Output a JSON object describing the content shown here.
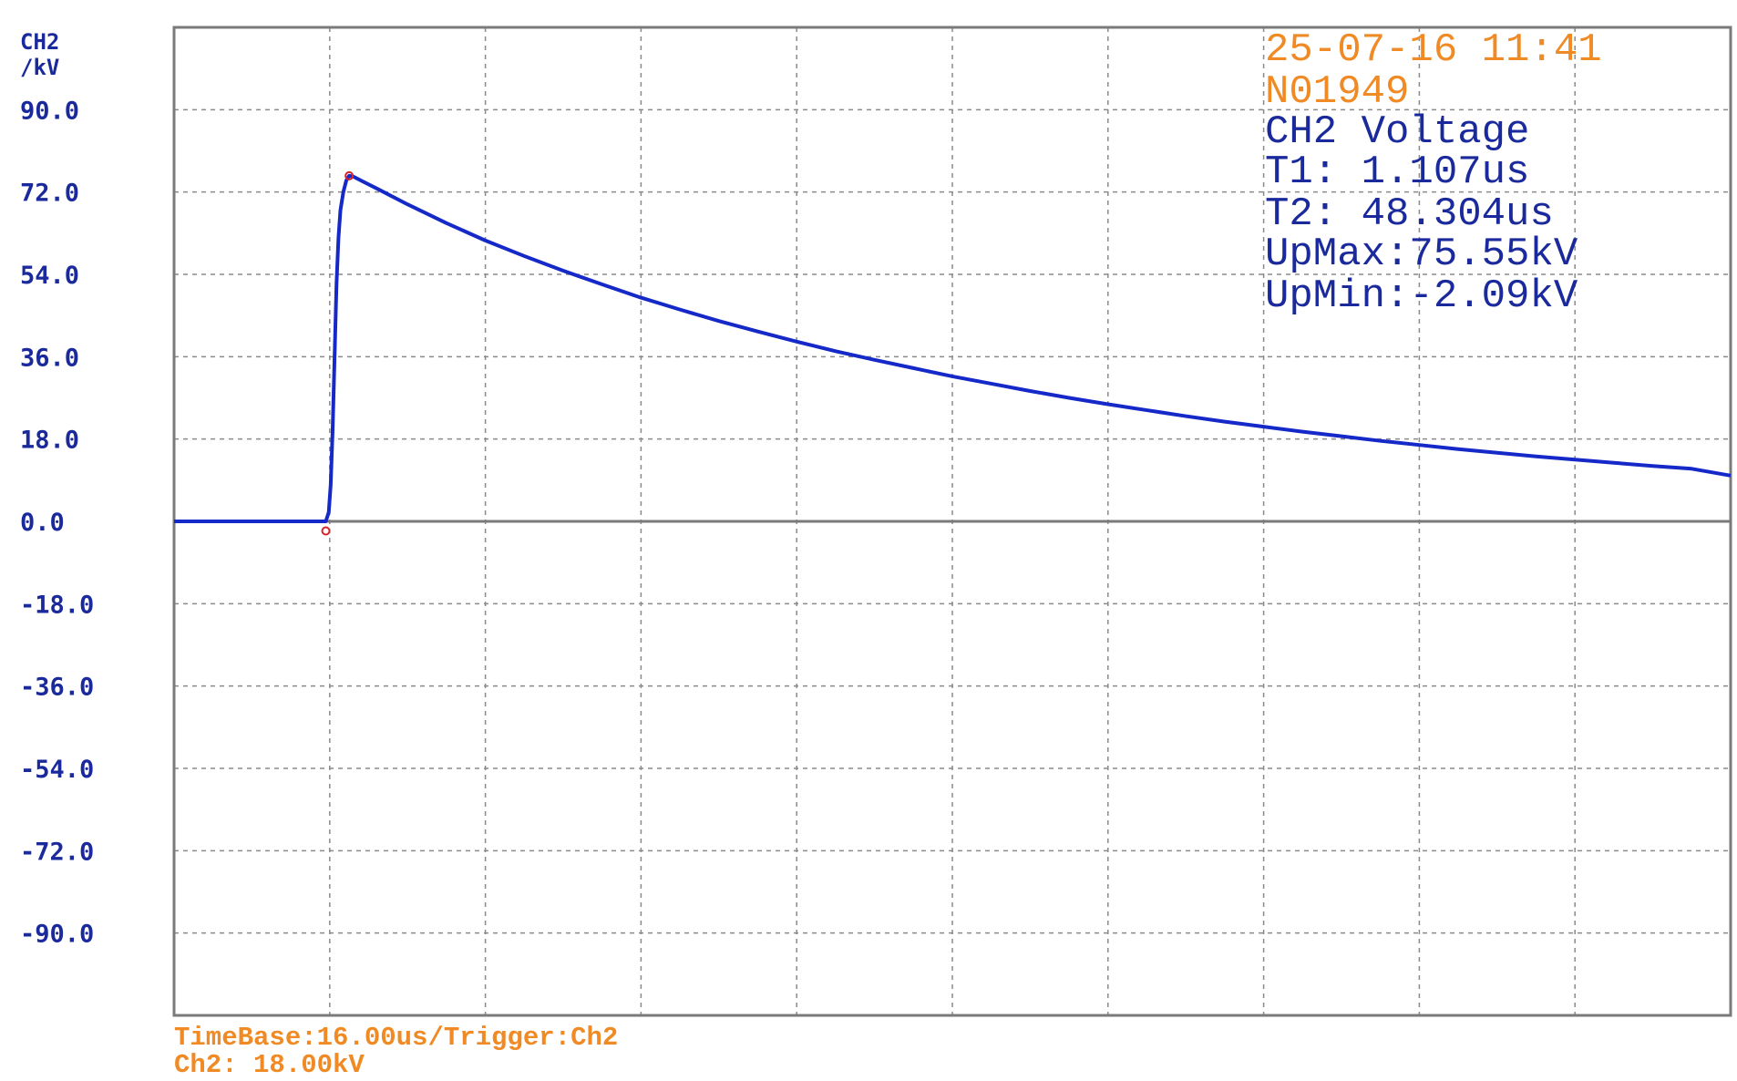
{
  "channel_label": "CH2",
  "unit_label": "/kV",
  "info": {
    "datetime": "25-07-16 11:41",
    "record": "N01949",
    "measurement": "CH2 Voltage",
    "t1": "T1:    1.107us",
    "t2": "T2:   48.304us",
    "upmax": "UpMax:75.55kV",
    "upmin": "UpMin:-2.09kV"
  },
  "footer": {
    "timebase": "TimeBase:16.00us/Trigger:Ch2",
    "channel_scale": "Ch2: 18.00kV"
  },
  "colors": {
    "trace": "#1528c8",
    "marker": "#d8232a",
    "grid": "#8a8a8a",
    "frame": "#7a7a7a",
    "axis_text": "#1a2a9c",
    "info_orange": "#f08a24"
  },
  "chart_data": {
    "type": "line",
    "x_unit": "us",
    "y_unit": "kV",
    "ylim": [
      -108,
      108
    ],
    "xlim": [
      0,
      160
    ],
    "y_ticks": [
      "90.0",
      "72.0",
      "54.0",
      "36.0",
      "18.0",
      "0.0",
      "-18.0",
      "-36.0",
      "-54.0",
      "-72.0",
      "-90.0"
    ],
    "grid": true,
    "series": [
      {
        "points": [
          [
            0,
            0
          ],
          [
            15.6,
            0
          ],
          [
            15.9,
            2
          ],
          [
            16.1,
            8
          ],
          [
            16.3,
            20
          ],
          [
            16.5,
            36
          ],
          [
            16.7,
            52
          ],
          [
            16.9,
            62
          ],
          [
            17.1,
            68
          ],
          [
            17.4,
            72
          ],
          [
            17.7,
            74.5
          ],
          [
            18.0,
            75.55
          ],
          [
            18.5,
            75.3
          ],
          [
            19.5,
            74.2
          ],
          [
            21,
            72.6
          ],
          [
            24,
            69.3
          ],
          [
            28,
            65.2
          ],
          [
            32,
            61.4
          ],
          [
            36,
            58.0
          ],
          [
            40,
            54.8
          ],
          [
            44,
            51.8
          ],
          [
            48,
            48.9
          ],
          [
            52,
            46.3
          ],
          [
            56,
            43.8
          ],
          [
            60,
            41.5
          ],
          [
            64,
            39.3
          ],
          [
            68,
            37.2
          ],
          [
            72,
            35.3
          ],
          [
            76,
            33.5
          ],
          [
            80,
            31.7
          ],
          [
            84,
            30.1
          ],
          [
            88,
            28.5
          ],
          [
            92,
            27.0
          ],
          [
            96,
            25.6
          ],
          [
            100,
            24.3
          ],
          [
            104,
            23.0
          ],
          [
            108,
            21.8
          ],
          [
            112,
            20.7
          ],
          [
            116,
            19.6
          ],
          [
            120,
            18.6
          ],
          [
            124,
            17.6
          ],
          [
            128,
            16.7
          ],
          [
            132,
            15.8
          ],
          [
            136,
            15.0
          ],
          [
            140,
            14.2
          ],
          [
            144,
            13.5
          ],
          [
            148,
            12.8
          ],
          [
            152,
            12.1
          ],
          [
            156,
            11.5
          ],
          [
            160,
            10.0
          ]
        ]
      }
    ],
    "markers": [
      {
        "x": 15.6,
        "y": -2.09
      },
      {
        "x": 18.0,
        "y": 75.55
      }
    ]
  }
}
